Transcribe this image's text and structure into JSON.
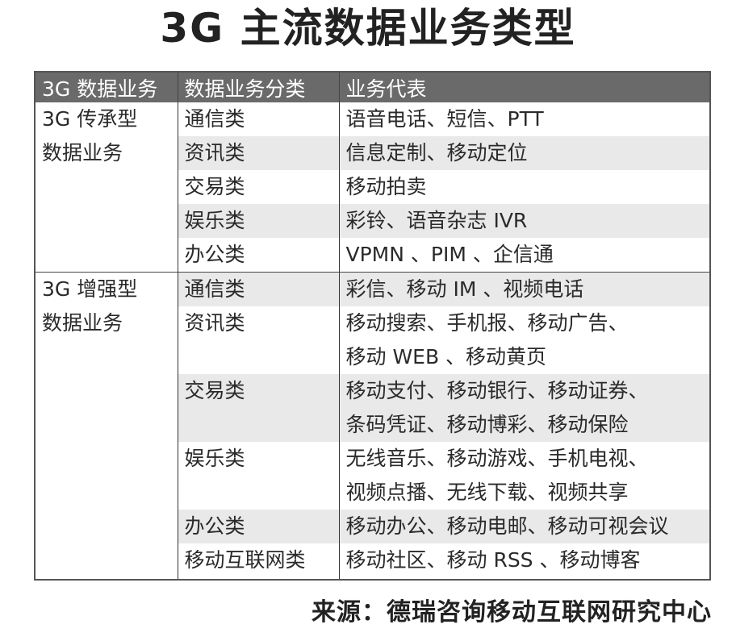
{
  "title": "3G 主流数据业务类型",
  "table": {
    "headers": [
      "3G 数据业务",
      "数据业务分类",
      "业务代表"
    ],
    "groups": [
      {
        "name_lines": [
          "3G 传承型",
          "数据业务"
        ],
        "rows": [
          {
            "category": "通信类",
            "lines": [
              "语音电话、短信、PTT"
            ]
          },
          {
            "category": "资讯类",
            "lines": [
              "信息定制、移动定位"
            ]
          },
          {
            "category": "交易类",
            "lines": [
              "移动拍卖"
            ]
          },
          {
            "category": "娱乐类",
            "lines": [
              "彩铃、语音杂志 IVR"
            ]
          },
          {
            "category": "办公类",
            "lines": [
              "VPMN 、PIM 、企信通"
            ]
          }
        ]
      },
      {
        "name_lines": [
          "3G 增强型",
          "数据业务"
        ],
        "rows": [
          {
            "category": "通信类",
            "lines": [
              "彩信、移动 IM 、视频电话"
            ]
          },
          {
            "category": "资讯类",
            "lines": [
              "移动搜索、手机报、移动广告、",
              "移动 WEB 、移动黄页"
            ]
          },
          {
            "category": "交易类",
            "lines": [
              "移动支付、移动银行、移动证券、",
              "条码凭证、移动博彩、移动保险"
            ]
          },
          {
            "category": "娱乐类",
            "lines": [
              "无线音乐、移动游戏、手机电视、",
              "视频点播、无线下载、视频共享"
            ]
          },
          {
            "category": "办公类",
            "lines": [
              "移动办公、移动电邮、移动可视会议"
            ]
          },
          {
            "category": "移动互联网类",
            "lines": [
              "移动社区、移动 RSS 、移动博客"
            ]
          }
        ]
      }
    ]
  },
  "source": "来源：德瑞咨询移动互联网研究中心"
}
